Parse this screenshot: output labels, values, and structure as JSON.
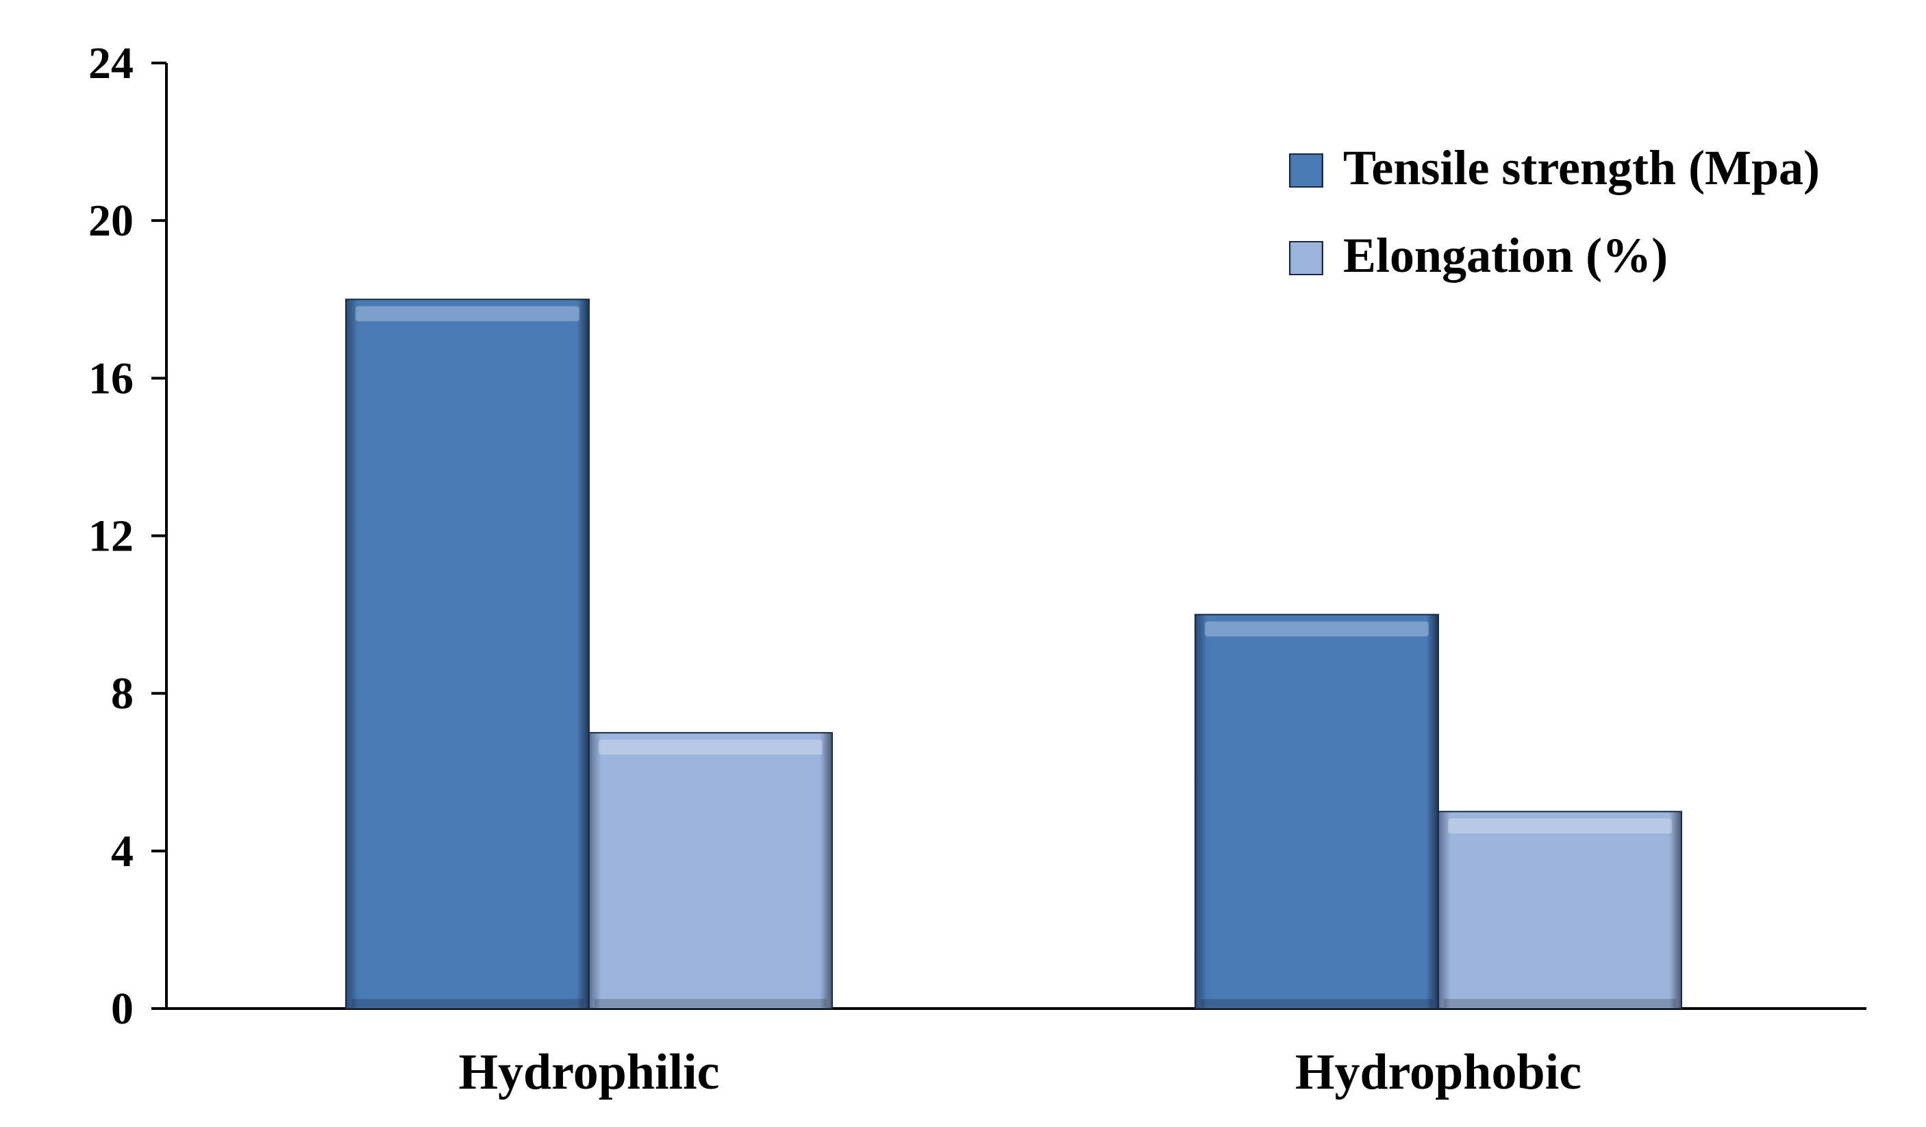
{
  "chart_data": {
    "type": "bar",
    "title": "",
    "xlabel": "",
    "ylabel": "",
    "categories": [
      "Hydrophilic",
      "Hydrophobic"
    ],
    "series": [
      {
        "name": "Tensile strength  (Mpa)",
        "values": [
          18,
          10
        ],
        "color": "#4a7ab4"
      },
      {
        "name": "Elongation (%)",
        "values": [
          7,
          5
        ],
        "color": "#9cb4dc"
      }
    ],
    "ylim": [
      0,
      24
    ],
    "yticks": [
      "0",
      "4",
      "8",
      "12",
      "16",
      "20",
      "24"
    ],
    "grid": false,
    "legend_position": "top-right"
  }
}
